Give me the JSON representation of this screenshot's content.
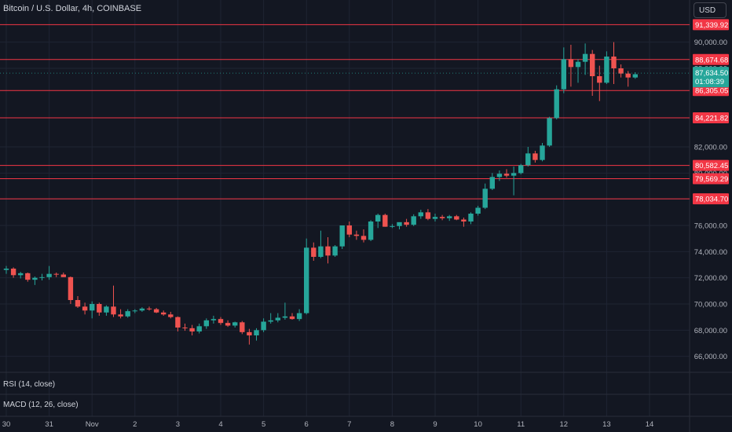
{
  "header": {
    "title": "Bitcoin / U.S. Dollar, 4h, COINBASE",
    "currency_button": "USD"
  },
  "panes": {
    "rsi_label": "RSI (14, close)",
    "macd_label": "MACD (12, 26, close)"
  },
  "colors": {
    "background": "#131722",
    "grid": "#1f2433",
    "up": "#26a69a",
    "down": "#ef5350",
    "level_line": "#f23645",
    "axis_text": "#b2b5be"
  },
  "chart_data": {
    "type": "candlestick",
    "title": "Bitcoin / U.S. Dollar, 4h, COINBASE",
    "ylim": [
      64780,
      91780
    ],
    "y_ticks": [
      66000,
      68000,
      70000,
      72000,
      74000,
      76000,
      78000,
      80000,
      82000,
      88000,
      90000
    ],
    "y_tick_labels": [
      "66,000.00",
      "68,000.00",
      "70,000.00",
      "72,000.00",
      "74,000.00",
      "76,000.00",
      "78,000.00",
      "80,000.00",
      "82,000.00",
      "88,000.00",
      "90,000.00"
    ],
    "x_ticks": [
      "30",
      "31",
      "Nov",
      "2",
      "3",
      "4",
      "5",
      "6",
      "7",
      "8",
      "9",
      "10",
      "11",
      "12",
      "13",
      "14"
    ],
    "x_tick_bars": [
      0,
      6,
      12,
      18,
      24,
      30,
      36,
      42,
      48,
      54,
      60,
      66,
      72,
      78,
      84,
      90
    ],
    "price_levels": [
      {
        "value": 91339.92,
        "label": "91,339.92"
      },
      {
        "value": 88674.68,
        "label": "88,674.68"
      },
      {
        "value": 86305.05,
        "label": "86,305.05"
      },
      {
        "value": 84221.82,
        "label": "84,221.82"
      },
      {
        "value": 80582.45,
        "label": "80,582.45"
      },
      {
        "value": 79569.29,
        "label": "79,569.29"
      },
      {
        "value": 78034.7,
        "label": "78,034.70"
      }
    ],
    "current_price": {
      "value": 87634.5,
      "label": "87,634.50",
      "countdown": "01:08:39"
    },
    "candles": [
      {
        "o": 72600,
        "h": 72900,
        "l": 72300,
        "c": 72700
      },
      {
        "o": 72700,
        "h": 72800,
        "l": 72000,
        "c": 72200
      },
      {
        "o": 72200,
        "h": 72450,
        "l": 71950,
        "c": 72350
      },
      {
        "o": 72350,
        "h": 72400,
        "l": 71700,
        "c": 71850
      },
      {
        "o": 71850,
        "h": 72100,
        "l": 71450,
        "c": 72000
      },
      {
        "o": 72000,
        "h": 72300,
        "l": 71800,
        "c": 72050
      },
      {
        "o": 72050,
        "h": 72900,
        "l": 71850,
        "c": 72300
      },
      {
        "o": 72300,
        "h": 72400,
        "l": 72050,
        "c": 72250
      },
      {
        "o": 72250,
        "h": 72400,
        "l": 72100,
        "c": 72050
      },
      {
        "o": 72050,
        "h": 72100,
        "l": 70000,
        "c": 70300
      },
      {
        "o": 70300,
        "h": 70600,
        "l": 69700,
        "c": 69800
      },
      {
        "o": 69800,
        "h": 70100,
        "l": 69200,
        "c": 69500
      },
      {
        "o": 69500,
        "h": 70200,
        "l": 68900,
        "c": 70000
      },
      {
        "o": 70000,
        "h": 70100,
        "l": 69100,
        "c": 69350
      },
      {
        "o": 69350,
        "h": 69900,
        "l": 69100,
        "c": 69800
      },
      {
        "o": 69800,
        "h": 71400,
        "l": 69000,
        "c": 69200
      },
      {
        "o": 69200,
        "h": 69600,
        "l": 68900,
        "c": 69050
      },
      {
        "o": 69050,
        "h": 69600,
        "l": 68950,
        "c": 69450
      },
      {
        "o": 69450,
        "h": 69600,
        "l": 69300,
        "c": 69500
      },
      {
        "o": 69500,
        "h": 69750,
        "l": 69400,
        "c": 69650
      },
      {
        "o": 69650,
        "h": 69800,
        "l": 69500,
        "c": 69600
      },
      {
        "o": 69600,
        "h": 69700,
        "l": 69300,
        "c": 69350
      },
      {
        "o": 69350,
        "h": 69500,
        "l": 69100,
        "c": 69200
      },
      {
        "o": 69200,
        "h": 69400,
        "l": 68900,
        "c": 69000
      },
      {
        "o": 69000,
        "h": 69050,
        "l": 67900,
        "c": 68200
      },
      {
        "o": 68200,
        "h": 68500,
        "l": 67950,
        "c": 68150
      },
      {
        "o": 68150,
        "h": 68400,
        "l": 67600,
        "c": 67900
      },
      {
        "o": 67900,
        "h": 68500,
        "l": 67750,
        "c": 68300
      },
      {
        "o": 68300,
        "h": 68900,
        "l": 68100,
        "c": 68750
      },
      {
        "o": 68750,
        "h": 69100,
        "l": 68500,
        "c": 68850
      },
      {
        "o": 68850,
        "h": 69000,
        "l": 68400,
        "c": 68550
      },
      {
        "o": 68550,
        "h": 68750,
        "l": 68250,
        "c": 68350
      },
      {
        "o": 68350,
        "h": 68650,
        "l": 68200,
        "c": 68600
      },
      {
        "o": 68600,
        "h": 68700,
        "l": 67700,
        "c": 67850
      },
      {
        "o": 67850,
        "h": 68100,
        "l": 66900,
        "c": 67600
      },
      {
        "o": 67600,
        "h": 68150,
        "l": 67200,
        "c": 68000
      },
      {
        "o": 68000,
        "h": 68900,
        "l": 67850,
        "c": 68650
      },
      {
        "o": 68650,
        "h": 69300,
        "l": 68500,
        "c": 68750
      },
      {
        "o": 68750,
        "h": 69300,
        "l": 68600,
        "c": 68950
      },
      {
        "o": 68950,
        "h": 70100,
        "l": 68800,
        "c": 69050
      },
      {
        "o": 69050,
        "h": 69300,
        "l": 68800,
        "c": 68850
      },
      {
        "o": 68850,
        "h": 69600,
        "l": 68700,
        "c": 69300
      },
      {
        "o": 69300,
        "h": 75000,
        "l": 69200,
        "c": 74300
      },
      {
        "o": 74300,
        "h": 74700,
        "l": 73300,
        "c": 73600
      },
      {
        "o": 73600,
        "h": 75600,
        "l": 73500,
        "c": 74400
      },
      {
        "o": 74400,
        "h": 75100,
        "l": 73100,
        "c": 73700
      },
      {
        "o": 73700,
        "h": 74500,
        "l": 73600,
        "c": 74400
      },
      {
        "o": 74400,
        "h": 76000,
        "l": 74200,
        "c": 76000
      },
      {
        "o": 76000,
        "h": 76300,
        "l": 75100,
        "c": 75300
      },
      {
        "o": 75300,
        "h": 75600,
        "l": 74900,
        "c": 75200
      },
      {
        "o": 75200,
        "h": 75700,
        "l": 74700,
        "c": 74900
      },
      {
        "o": 74900,
        "h": 76400,
        "l": 74800,
        "c": 76300
      },
      {
        "o": 76300,
        "h": 76900,
        "l": 75800,
        "c": 76800
      },
      {
        "o": 76800,
        "h": 76900,
        "l": 75900,
        "c": 75900
      },
      {
        "o": 75900,
        "h": 76100,
        "l": 75800,
        "c": 75950
      },
      {
        "o": 75950,
        "h": 76200,
        "l": 75700,
        "c": 76250
      },
      {
        "o": 76250,
        "h": 76500,
        "l": 75900,
        "c": 76050
      },
      {
        "o": 76050,
        "h": 76850,
        "l": 75950,
        "c": 76700
      },
      {
        "o": 76700,
        "h": 77200,
        "l": 76500,
        "c": 77000
      },
      {
        "o": 77000,
        "h": 77250,
        "l": 76400,
        "c": 76500
      },
      {
        "o": 76500,
        "h": 76900,
        "l": 76300,
        "c": 76650
      },
      {
        "o": 76650,
        "h": 76800,
        "l": 76400,
        "c": 76550
      },
      {
        "o": 76550,
        "h": 76800,
        "l": 76350,
        "c": 76700
      },
      {
        "o": 76700,
        "h": 76800,
        "l": 76400,
        "c": 76450
      },
      {
        "o": 76450,
        "h": 76600,
        "l": 75900,
        "c": 76300
      },
      {
        "o": 76300,
        "h": 77000,
        "l": 76100,
        "c": 76900
      },
      {
        "o": 76900,
        "h": 77500,
        "l": 76750,
        "c": 77350
      },
      {
        "o": 77350,
        "h": 79200,
        "l": 77250,
        "c": 78800
      },
      {
        "o": 78800,
        "h": 80000,
        "l": 78700,
        "c": 79700
      },
      {
        "o": 79700,
        "h": 80200,
        "l": 79400,
        "c": 79950
      },
      {
        "o": 79950,
        "h": 80300,
        "l": 79650,
        "c": 79800
      },
      {
        "o": 79800,
        "h": 80500,
        "l": 78300,
        "c": 80000
      },
      {
        "o": 80000,
        "h": 80700,
        "l": 79900,
        "c": 80600
      },
      {
        "o": 80600,
        "h": 82000,
        "l": 80500,
        "c": 81500
      },
      {
        "o": 81500,
        "h": 81700,
        "l": 80800,
        "c": 81000
      },
      {
        "o": 81000,
        "h": 82300,
        "l": 80900,
        "c": 82100
      },
      {
        "o": 82100,
        "h": 84300,
        "l": 82000,
        "c": 84200
      },
      {
        "o": 84200,
        "h": 86700,
        "l": 84100,
        "c": 86400
      },
      {
        "o": 86400,
        "h": 89600,
        "l": 86100,
        "c": 88700
      },
      {
        "o": 88700,
        "h": 89800,
        "l": 86600,
        "c": 88100
      },
      {
        "o": 88100,
        "h": 88700,
        "l": 86900,
        "c": 88500
      },
      {
        "o": 88500,
        "h": 89900,
        "l": 87500,
        "c": 89100
      },
      {
        "o": 89100,
        "h": 89400,
        "l": 85900,
        "c": 87400
      },
      {
        "o": 87400,
        "h": 88200,
        "l": 85500,
        "c": 86900
      },
      {
        "o": 86900,
        "h": 89300,
        "l": 86800,
        "c": 88900
      },
      {
        "o": 88900,
        "h": 90000,
        "l": 86800,
        "c": 88000
      },
      {
        "o": 88000,
        "h": 88300,
        "l": 87300,
        "c": 87600
      },
      {
        "o": 87600,
        "h": 87800,
        "l": 86600,
        "c": 87300
      },
      {
        "o": 87300,
        "h": 87700,
        "l": 87200,
        "c": 87550
      }
    ]
  }
}
